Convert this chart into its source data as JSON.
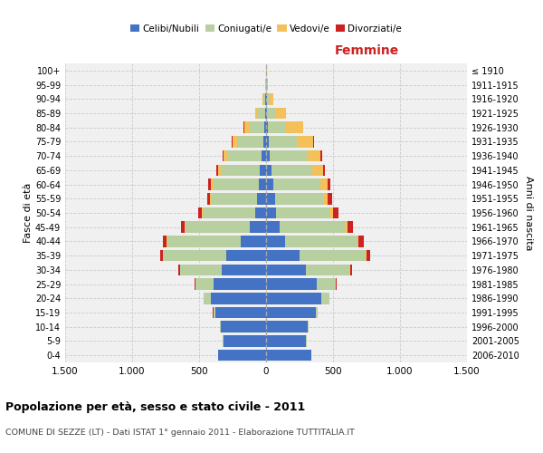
{
  "age_groups": [
    "0-4",
    "5-9",
    "10-14",
    "15-19",
    "20-24",
    "25-29",
    "30-34",
    "35-39",
    "40-44",
    "45-49",
    "50-54",
    "55-59",
    "60-64",
    "65-69",
    "70-74",
    "75-79",
    "80-84",
    "85-89",
    "90-94",
    "95-99",
    "100+"
  ],
  "birth_years": [
    "2006-2010",
    "2001-2005",
    "1996-2000",
    "1991-1995",
    "1986-1990",
    "1981-1985",
    "1976-1980",
    "1971-1975",
    "1966-1970",
    "1961-1965",
    "1956-1960",
    "1951-1955",
    "1946-1950",
    "1941-1945",
    "1936-1940",
    "1931-1935",
    "1926-1930",
    "1921-1925",
    "1916-1920",
    "1911-1915",
    "≤ 1910"
  ],
  "male": {
    "celibi": [
      360,
      320,
      340,
      380,
      410,
      390,
      330,
      295,
      190,
      120,
      80,
      65,
      55,
      45,
      35,
      20,
      15,
      8,
      4,
      2,
      0
    ],
    "coniugati": [
      1,
      2,
      5,
      15,
      55,
      135,
      310,
      470,
      545,
      480,
      390,
      340,
      340,
      295,
      250,
      195,
      110,
      50,
      15,
      5,
      2
    ],
    "vedovi": [
      0,
      0,
      0,
      0,
      1,
      1,
      2,
      3,
      5,
      6,
      8,
      12,
      18,
      20,
      30,
      35,
      40,
      25,
      8,
      2,
      0
    ],
    "divorziati": [
      0,
      0,
      0,
      1,
      2,
      5,
      12,
      22,
      30,
      30,
      28,
      25,
      18,
      10,
      8,
      4,
      2,
      1,
      0,
      0,
      0
    ]
  },
  "female": {
    "nubili": [
      340,
      300,
      310,
      370,
      410,
      380,
      295,
      250,
      140,
      100,
      75,
      65,
      55,
      40,
      28,
      18,
      15,
      8,
      4,
      2,
      0
    ],
    "coniugate": [
      1,
      2,
      5,
      15,
      60,
      140,
      325,
      490,
      540,
      490,
      400,
      360,
      350,
      305,
      275,
      215,
      130,
      60,
      20,
      5,
      2
    ],
    "vedove": [
      0,
      0,
      0,
      0,
      1,
      2,
      5,
      8,
      12,
      15,
      25,
      35,
      55,
      80,
      105,
      120,
      130,
      80,
      30,
      8,
      2
    ],
    "divorziate": [
      0,
      0,
      0,
      1,
      2,
      6,
      15,
      30,
      40,
      45,
      40,
      30,
      22,
      12,
      10,
      5,
      3,
      2,
      1,
      0,
      0
    ]
  },
  "colors": {
    "celibi": "#4472c4",
    "coniugati": "#b8cfa0",
    "vedovi": "#f4c05a",
    "divorziati": "#cc2222"
  },
  "xlim": 1500,
  "title": "Popolazione per età, sesso e stato civile - 2011",
  "subtitle": "COMUNE DI SEZZE (LT) - Dati ISTAT 1° gennaio 2011 - Elaborazione TUTTITALIA.IT",
  "ylabel_left": "Fasce di età",
  "ylabel_right": "Anni di nascita",
  "xlabel_right": "Femmine",
  "background_color": "#f0f0f0",
  "grid_color": "#cccccc"
}
